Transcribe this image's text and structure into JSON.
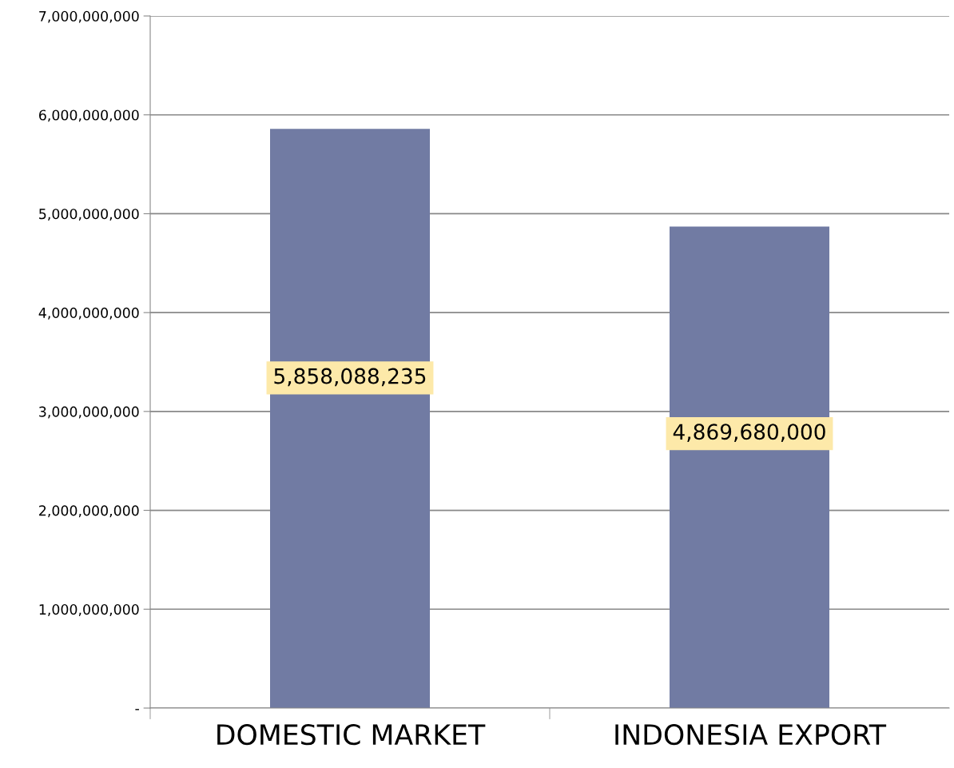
{
  "chart_data": {
    "type": "bar",
    "categories": [
      "DOMESTIC MARKET",
      "INDONESIA EXPORT"
    ],
    "values": [
      5858088235,
      4869680000
    ],
    "value_labels": [
      "5,858,088,235",
      "4,869,680,000"
    ],
    "color": "#717ba3",
    "ylim": [
      0,
      7000000000
    ],
    "yticks": [
      {
        "value": 0,
        "label": "-"
      },
      {
        "value": 1000000000,
        "label": "1,000,000,000"
      },
      {
        "value": 2000000000,
        "label": "2,000,000,000"
      },
      {
        "value": 3000000000,
        "label": "3,000,000,000"
      },
      {
        "value": 4000000000,
        "label": "4,000,000,000"
      },
      {
        "value": 5000000000,
        "label": "5,000,000,000"
      },
      {
        "value": 6000000000,
        "label": "6,000,000,000"
      },
      {
        "value": 7000000000,
        "label": "7,000,000,000"
      }
    ],
    "grid": "y",
    "legend": false
  }
}
